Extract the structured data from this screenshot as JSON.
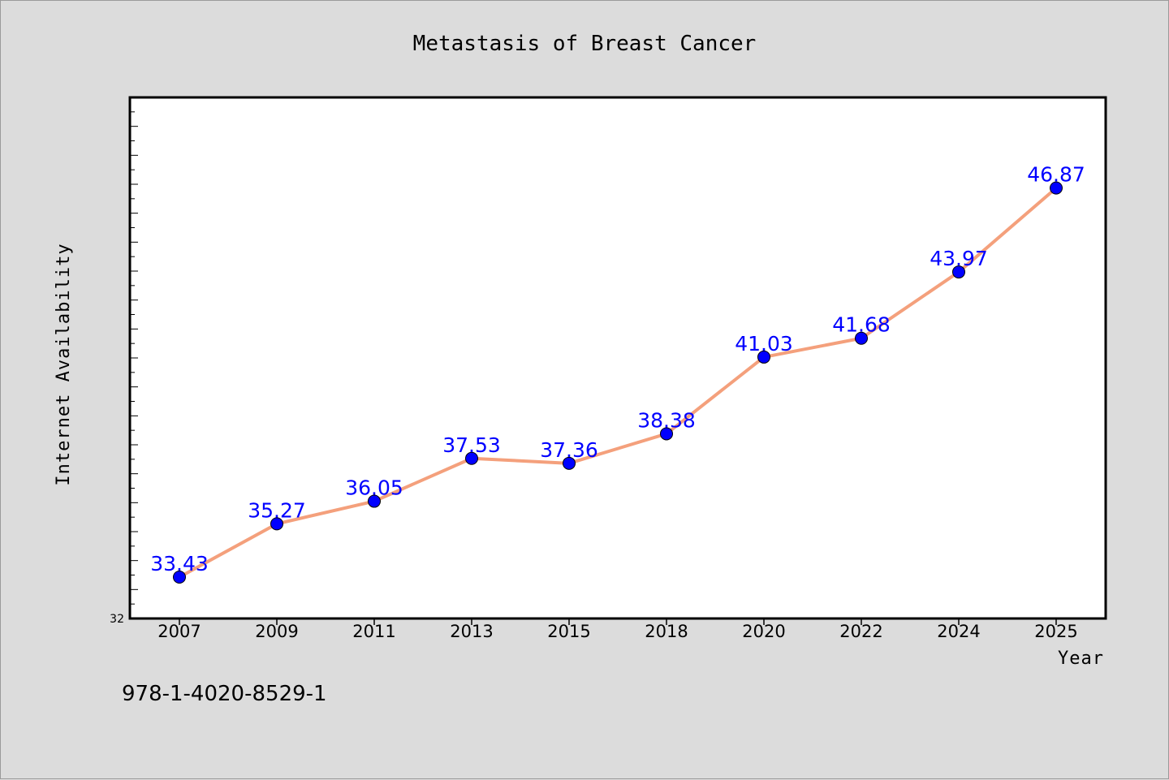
{
  "colors": {
    "background": "#dcdcdc",
    "plot_background": "#ffffff",
    "line": "#f4a07c",
    "marker_fill": "#0000ff",
    "data_label": "#0000ff"
  },
  "footer_text": "978-1-4020-8529-1",
  "chart_data": {
    "type": "line",
    "title": "Metastasis of Breast Cancer",
    "xlabel": "Year",
    "ylabel": "Internet Availability",
    "categories": [
      "2007",
      "2009",
      "2011",
      "2013",
      "2015",
      "2018",
      "2020",
      "2022",
      "2024",
      "2025"
    ],
    "series": [
      {
        "values": [
          33.43,
          35.27,
          36.05,
          37.53,
          37.36,
          38.38,
          41.03,
          41.68,
          43.97,
          46.87
        ],
        "labels": [
          "33.43",
          "35.27",
          "36.05",
          "37.53",
          "37.36",
          "38.38",
          "41.03",
          "41.68",
          "43.97",
          "46.87"
        ]
      }
    ],
    "ylim": [
      32,
      50
    ],
    "y_tick_label": "32",
    "grid": false,
    "legend": "none"
  }
}
